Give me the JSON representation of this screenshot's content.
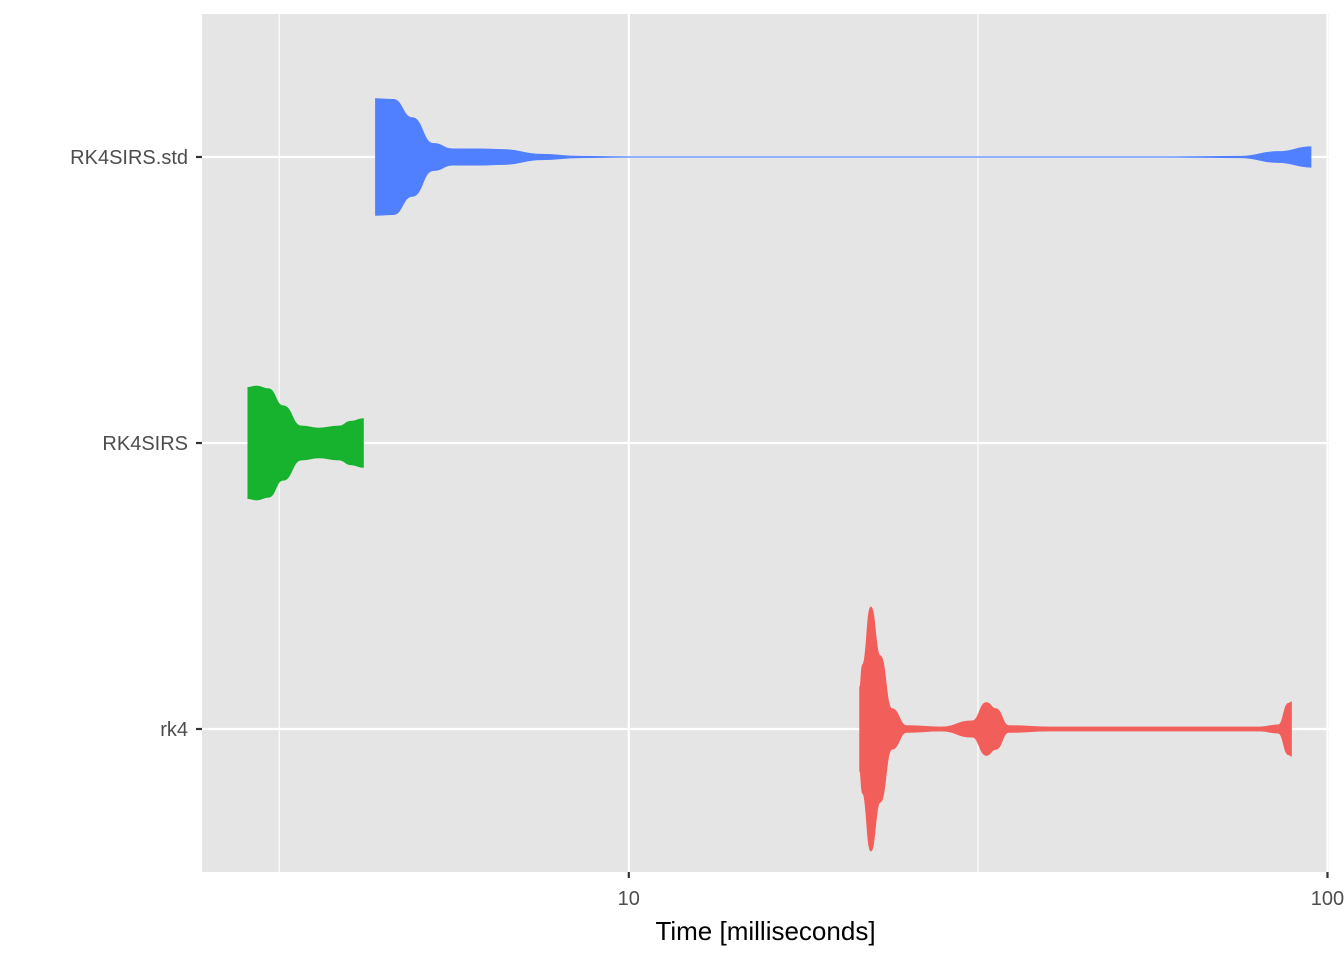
{
  "chart_data": {
    "type": "violin",
    "orientation": "horizontal",
    "title": "",
    "xlabel": "Time [milliseconds]",
    "ylabel": "",
    "x_scale": "log10",
    "xlim": [
      2.45,
      100.5
    ],
    "x_major_ticks": [
      10,
      100
    ],
    "x_minor_gridlines": [
      3.16,
      31.6
    ],
    "categories": [
      "RK4SIRS.std",
      "RK4SIRS",
      "rk4"
    ],
    "legend": "none",
    "grid": true,
    "colors": {
      "panel": "#e5e5e5",
      "grid": "#ffffff",
      "RK4SIRS.std": "#5080ff",
      "RK4SIRS": "#17b22e",
      "rk4": "#f25e5a"
    },
    "series": [
      {
        "category": "RK4SIRS.std",
        "range": [
          4.34,
          94.7
        ],
        "density_profile": [
          [
            4.34,
            0.86
          ],
          [
            4.6,
            0.85
          ],
          [
            4.9,
            0.58
          ],
          [
            5.25,
            0.2
          ],
          [
            5.6,
            0.12
          ],
          [
            6.1,
            0.12
          ],
          [
            6.6,
            0.11
          ],
          [
            7.5,
            0.04
          ],
          [
            8.5,
            0.01
          ],
          [
            10,
            0.004
          ],
          [
            20,
            0.004
          ],
          [
            40,
            0.004
          ],
          [
            60,
            0.004
          ],
          [
            75,
            0.01
          ],
          [
            85,
            0.08
          ],
          [
            94.7,
            0.15
          ]
        ]
      },
      {
        "category": "RK4SIRS",
        "range": [
          2.85,
          4.17
        ],
        "density_profile": [
          [
            2.85,
            0.82
          ],
          [
            2.93,
            0.84
          ],
          [
            3.05,
            0.8
          ],
          [
            3.2,
            0.55
          ],
          [
            3.4,
            0.25
          ],
          [
            3.6,
            0.22
          ],
          [
            3.85,
            0.25
          ],
          [
            4.0,
            0.32
          ],
          [
            4.17,
            0.36
          ]
        ]
      },
      {
        "category": "rk4",
        "range": [
          21.4,
          88.8
        ],
        "density_profile": [
          [
            21.4,
            0.62
          ],
          [
            21.6,
            0.95
          ],
          [
            22.2,
            1.8
          ],
          [
            22.9,
            1.08
          ],
          [
            23.8,
            0.3
          ],
          [
            25,
            0.05
          ],
          [
            28,
            0.03
          ],
          [
            31,
            0.12
          ],
          [
            32.5,
            0.39
          ],
          [
            33.5,
            0.3
          ],
          [
            35,
            0.05
          ],
          [
            40,
            0.03
          ],
          [
            60,
            0.03
          ],
          [
            80,
            0.03
          ],
          [
            85,
            0.06
          ],
          [
            88,
            0.38
          ],
          [
            88.8,
            0.4
          ]
        ]
      }
    ]
  },
  "axis_labels": {
    "x_ticks": [
      "10",
      "100"
    ],
    "y_ticks": [
      "RK4SIRS.std",
      "RK4SIRS",
      "rk4"
    ]
  }
}
